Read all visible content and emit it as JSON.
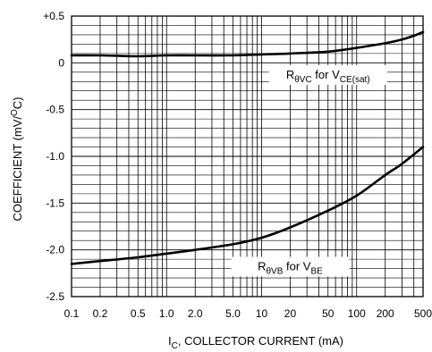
{
  "chart_data": {
    "type": "line",
    "xscale": "log",
    "xlim": [
      0.1,
      500
    ],
    "ylim": [
      -2.5,
      0.5
    ],
    "grid": true,
    "xlabel": {
      "main": "I",
      "sub": "C",
      "rest": ", COLLECTOR CURRENT (mA)"
    },
    "ylabel": {
      "pre": "COEFFICIENT (mV/",
      "sup": "O",
      "post": "C)"
    },
    "x_ticks": [
      {
        "value": 0.1,
        "label": "0.1"
      },
      {
        "value": 0.2,
        "label": "0.2"
      },
      {
        "value": 0.5,
        "label": "0.5"
      },
      {
        "value": 1,
        "label": "1.0"
      },
      {
        "value": 2,
        "label": "2.0"
      },
      {
        "value": 5,
        "label": "5.0"
      },
      {
        "value": 10,
        "label": "10"
      },
      {
        "value": 20,
        "label": "20"
      },
      {
        "value": 50,
        "label": "50"
      },
      {
        "value": 100,
        "label": "100"
      },
      {
        "value": 200,
        "label": "200"
      },
      {
        "value": 500,
        "label": "500"
      }
    ],
    "y_ticks": [
      {
        "value": 0.5,
        "label": "+0.5"
      },
      {
        "value": 0,
        "label": "0"
      },
      {
        "value": -0.5,
        "label": "-0.5"
      },
      {
        "value": -1.0,
        "label": "-1.0"
      },
      {
        "value": -1.5,
        "label": "-1.5"
      },
      {
        "value": -2.0,
        "label": "-2.0"
      },
      {
        "value": -2.5,
        "label": "-2.5"
      }
    ],
    "series": [
      {
        "label": {
          "p1": "R",
          "s1": "θVC",
          "p2": " for V",
          "s2": "CE(sat)"
        },
        "label_at": {
          "x": 50,
          "y": -0.13
        },
        "x": [
          0.1,
          0.2,
          0.5,
          1,
          2,
          5,
          10,
          20,
          50,
          100,
          200,
          300,
          400,
          500
        ],
        "y": [
          0.08,
          0.08,
          0.07,
          0.08,
          0.08,
          0.08,
          0.09,
          0.1,
          0.12,
          0.16,
          0.21,
          0.25,
          0.29,
          0.33
        ]
      },
      {
        "label": {
          "p1": "R",
          "s1": "θVB",
          "p2": " for V",
          "s2": "BE"
        },
        "label_at": {
          "x": 20,
          "y": -2.18
        },
        "x": [
          0.1,
          0.2,
          0.5,
          1,
          2,
          5,
          10,
          20,
          50,
          100,
          200,
          300,
          500
        ],
        "y": [
          -2.15,
          -2.12,
          -2.08,
          -2.04,
          -2.0,
          -1.94,
          -1.87,
          -1.76,
          -1.58,
          -1.42,
          -1.2,
          -1.08,
          -0.9
        ]
      }
    ]
  }
}
